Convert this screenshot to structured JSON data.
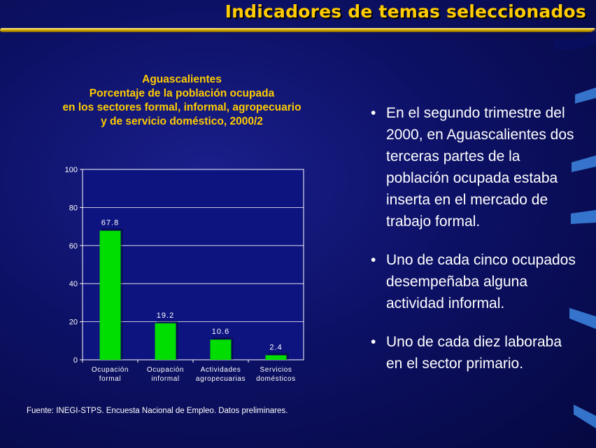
{
  "slide": {
    "title": "Indicadores de temas seleccionados"
  },
  "chart_heading": {
    "line1": "Aguascalientes",
    "line2": "Porcentaje de la población ocupada",
    "line3": "en los sectores formal, informal, agropecuario",
    "line4": "y de servicio doméstico, 2000/2"
  },
  "chart_data": {
    "type": "bar",
    "title": "Aguascalientes Porcentaje de la población ocupada en los sectores formal, informal, agropecuario y de servicio doméstico, 2000/2",
    "categories": [
      [
        "Ocupación",
        "formal"
      ],
      [
        "Ocupación",
        "informal"
      ],
      [
        "Actividades",
        "agropecuarias"
      ],
      [
        "Servicios",
        "domésticos"
      ]
    ],
    "values": [
      67.8,
      19.2,
      10.6,
      2.4
    ],
    "value_labels": [
      "67.8",
      "19.2",
      "10.6",
      "2.4"
    ],
    "xlabel": "",
    "ylabel": "",
    "ylim": [
      0,
      100
    ],
    "yticks": [
      0,
      20,
      40,
      60,
      80,
      100
    ],
    "grid": true,
    "bar_color": "#00dd00",
    "plot_background": "#0d1480",
    "axis_color": "#ffffff"
  },
  "source": "Fuente: INEGI-STPS.  Encuesta Nacional de Empleo. Datos preliminares.",
  "bullets": [
    {
      "lines": [
        "En el segundo trimestre del",
        "2000, en Aguascalientes dos",
        "terceras partes de la",
        "población ocupada estaba",
        "inserta en el mercado de",
        "trabajo formal."
      ]
    },
    {
      "lines": [
        "Uno de cada cinco ocupados",
        "desempeñaba alguna",
        "actividad informal."
      ]
    },
    {
      "lines": [
        "Uno de cada diez laboraba",
        "en el sector primario."
      ]
    }
  ],
  "colors": {
    "title": "#ffcc00",
    "heading": "#ffcc00",
    "text": "#ffffff",
    "rule": "#c8a400"
  }
}
